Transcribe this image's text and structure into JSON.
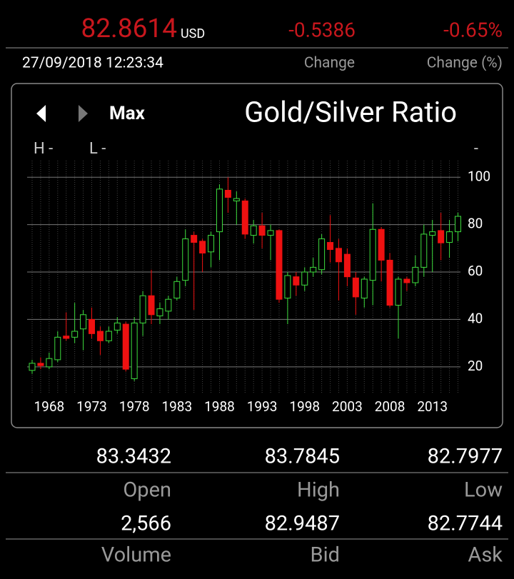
{
  "header": {
    "price": "82.8614",
    "currency": "USD",
    "change": "-0.5386",
    "change_pct": "-0.65%",
    "datetime": "27/09/2018 12:23:34",
    "change_label": "Change",
    "change_pct_label": "Change (%)"
  },
  "toolbar": {
    "range": "Max",
    "high_label": "H -",
    "low_label": "L -",
    "right_label": "-"
  },
  "chart_data": {
    "type": "candlestick",
    "title": "Gold/Silver Ratio",
    "categories": [
      null,
      null,
      "1968",
      null,
      null,
      null,
      null,
      "1973",
      null,
      null,
      null,
      null,
      "1978",
      null,
      null,
      null,
      null,
      "1983",
      null,
      null,
      null,
      null,
      "1988",
      null,
      null,
      null,
      null,
      "1993",
      null,
      null,
      null,
      null,
      "1998",
      null,
      null,
      null,
      null,
      "2003",
      null,
      null,
      null,
      null,
      "2008",
      null,
      null,
      null,
      null,
      "2013",
      null,
      null,
      null
    ],
    "open": [
      18.5,
      21.5,
      20,
      23,
      33,
      32.5,
      36,
      40,
      35,
      31,
      35.5,
      38,
      15,
      38.5,
      50,
      41.5,
      43.5,
      49,
      56.5,
      75.5,
      73,
      68.5,
      77,
      94.5,
      90,
      90,
      75.5,
      79.5,
      75.5,
      77.5,
      49,
      58,
      54.5,
      60,
      61,
      72.5,
      70,
      67.5,
      57.5,
      49,
      56.5,
      78,
      65,
      46,
      57,
      55.5,
      62,
      75.5,
      77.5,
      72.5,
      77
    ],
    "high": [
      23,
      24,
      26,
      35,
      43,
      47,
      44,
      45,
      37,
      37,
      41,
      39,
      41,
      52,
      61,
      47,
      50,
      58,
      78,
      77,
      74,
      77,
      97,
      100,
      94,
      91,
      82,
      85,
      80,
      78,
      60,
      60,
      62,
      66,
      76,
      84,
      74,
      70,
      60,
      58,
      89,
      79,
      68,
      58,
      58,
      67,
      80,
      82,
      85,
      82,
      85
    ],
    "low": [
      17,
      19,
      19,
      22,
      31,
      30,
      27,
      32,
      25,
      30,
      34,
      18,
      14,
      33,
      38,
      38,
      40,
      48,
      54,
      44,
      60,
      62,
      65,
      85,
      80,
      74,
      72,
      70,
      65,
      47,
      38,
      50,
      52,
      58,
      59,
      64,
      48,
      54,
      42,
      45,
      46,
      56,
      45,
      32,
      52,
      54,
      58,
      60,
      65,
      66,
      73
    ],
    "close": [
      21.5,
      20.5,
      23.5,
      32.5,
      32,
      35,
      42,
      34,
      31,
      35,
      38.5,
      19,
      38.5,
      50,
      42,
      44.5,
      48.5,
      56,
      74,
      72.5,
      68,
      75.5,
      95,
      91.5,
      91,
      76,
      79.5,
      75.5,
      77.5,
      48.5,
      58.5,
      54.5,
      60,
      62,
      74,
      69.5,
      64.3,
      58,
      49.5,
      57,
      78,
      65,
      46,
      57,
      55.5,
      62,
      76,
      77,
      72.3,
      77,
      83.5
    ],
    "up_color": "#3ddc3d",
    "down_color": "#ee1111",
    "ylim": [
      8.5,
      107
    ],
    "yticks": [
      20,
      40,
      60,
      80,
      100
    ],
    "grid": true
  },
  "stats": {
    "rows": [
      [
        "83.3432",
        "83.7845",
        "82.7977"
      ],
      [
        "Open",
        "High",
        "Low"
      ],
      [
        "2,566",
        "82.9487",
        "82.7744"
      ],
      [
        "Volume",
        "Bid",
        "Ask"
      ]
    ]
  }
}
